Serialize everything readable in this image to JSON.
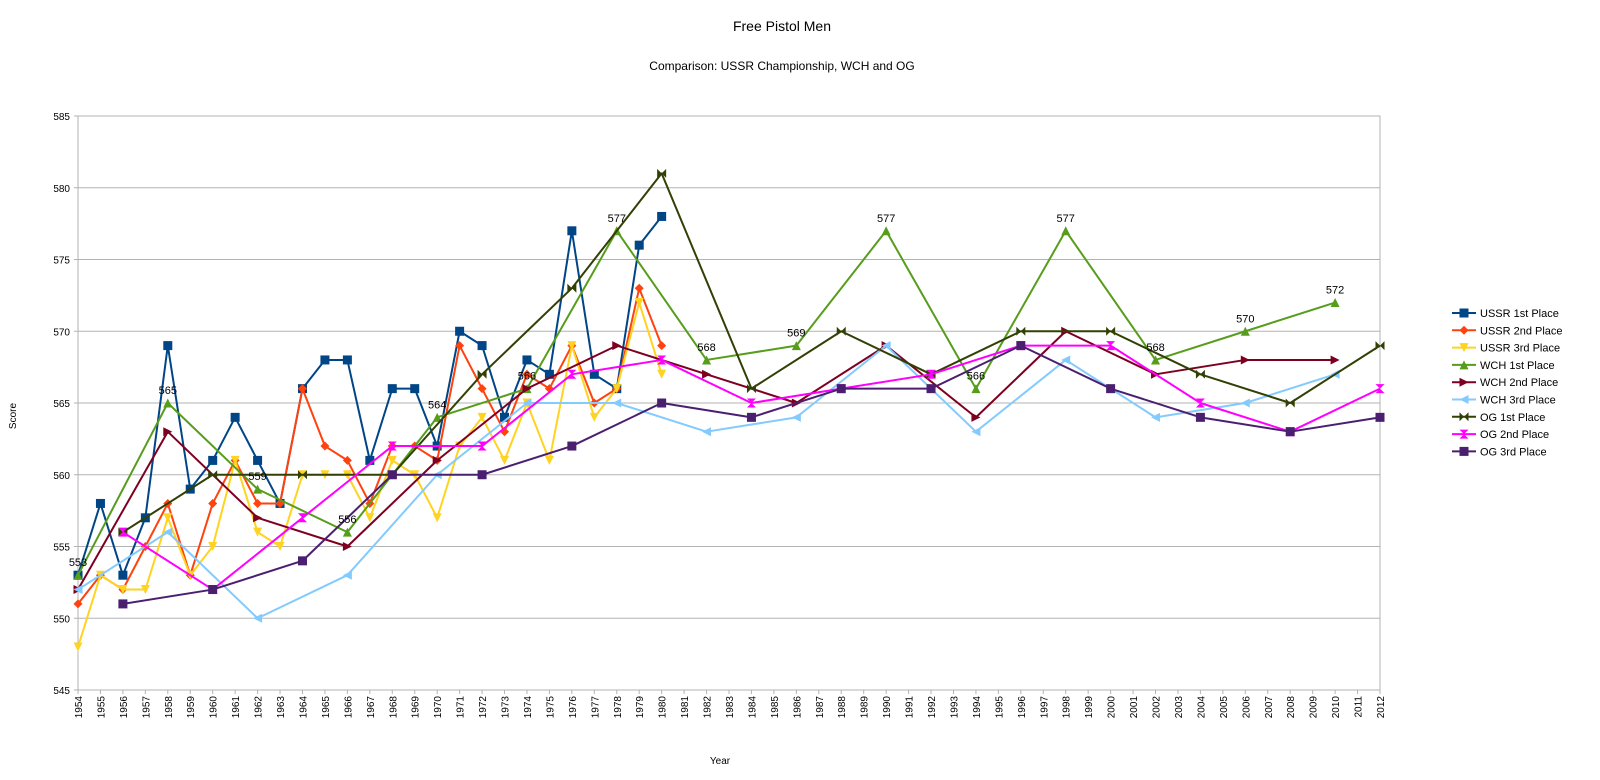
{
  "chart_data": {
    "type": "line",
    "title": "Free Pistol Men",
    "subtitle": "Comparison: USSR Championship, WCH and OG",
    "xlabel": "Year",
    "ylabel": "Score",
    "ylim": [
      545,
      585
    ],
    "yticks": [
      545,
      550,
      555,
      560,
      565,
      570,
      575,
      580,
      585
    ],
    "grid": "horizontal",
    "legend_position": "right",
    "x": [
      1954,
      1955,
      1956,
      1957,
      1958,
      1959,
      1960,
      1961,
      1962,
      1963,
      1964,
      1965,
      1966,
      1967,
      1968,
      1969,
      1970,
      1971,
      1972,
      1973,
      1974,
      1975,
      1976,
      1977,
      1978,
      1979,
      1980,
      1981,
      1982,
      1983,
      1984,
      1985,
      1986,
      1987,
      1988,
      1989,
      1990,
      1991,
      1992,
      1993,
      1994,
      1995,
      1996,
      1997,
      1998,
      1999,
      2000,
      2001,
      2002,
      2003,
      2004,
      2005,
      2006,
      2007,
      2008,
      2009,
      2010,
      2011,
      2012
    ],
    "series": [
      {
        "name": "USSR 1st Place",
        "color": "#004586",
        "marker": "square",
        "points": [
          [
            1954,
            553
          ],
          [
            1955,
            558
          ],
          [
            1956,
            553
          ],
          [
            1957,
            557
          ],
          [
            1958,
            569
          ],
          [
            1959,
            559
          ],
          [
            1960,
            561
          ],
          [
            1961,
            564
          ],
          [
            1962,
            561
          ],
          [
            1963,
            558
          ],
          [
            1964,
            566
          ],
          [
            1965,
            568
          ],
          [
            1966,
            568
          ],
          [
            1967,
            561
          ],
          [
            1968,
            566
          ],
          [
            1969,
            566
          ],
          [
            1970,
            562
          ],
          [
            1971,
            570
          ],
          [
            1972,
            569
          ],
          [
            1973,
            564
          ],
          [
            1974,
            568
          ],
          [
            1975,
            567
          ],
          [
            1976,
            577
          ],
          [
            1977,
            567
          ],
          [
            1978,
            566
          ],
          [
            1979,
            576
          ],
          [
            1980,
            578
          ]
        ]
      },
      {
        "name": "USSR 2nd Place",
        "color": "#ff420e",
        "marker": "diamond",
        "points": [
          [
            1954,
            551
          ],
          [
            1955,
            553
          ],
          [
            1956,
            552
          ],
          [
            1957,
            555
          ],
          [
            1958,
            558
          ],
          [
            1959,
            553
          ],
          [
            1960,
            558
          ],
          [
            1961,
            561
          ],
          [
            1962,
            558
          ],
          [
            1963,
            558
          ],
          [
            1964,
            566
          ],
          [
            1965,
            562
          ],
          [
            1966,
            561
          ],
          [
            1967,
            558
          ],
          [
            1968,
            562
          ],
          [
            1969,
            562
          ],
          [
            1970,
            561
          ],
          [
            1971,
            569
          ],
          [
            1972,
            566
          ],
          [
            1973,
            563
          ],
          [
            1974,
            567
          ],
          [
            1975,
            566
          ],
          [
            1976,
            569
          ],
          [
            1977,
            565
          ],
          [
            1978,
            566
          ],
          [
            1979,
            573
          ],
          [
            1980,
            569
          ]
        ]
      },
      {
        "name": "USSR 3rd Place",
        "color": "#ffd320",
        "marker": "triangle-down",
        "points": [
          [
            1954,
            548
          ],
          [
            1955,
            553
          ],
          [
            1956,
            552
          ],
          [
            1957,
            552
          ],
          [
            1958,
            557
          ],
          [
            1959,
            553
          ],
          [
            1960,
            555
          ],
          [
            1961,
            561
          ],
          [
            1962,
            556
          ],
          [
            1963,
            555
          ],
          [
            1964,
            560
          ],
          [
            1965,
            560
          ],
          [
            1966,
            560
          ],
          [
            1967,
            557
          ],
          [
            1968,
            561
          ],
          [
            1969,
            560
          ],
          [
            1970,
            557
          ],
          [
            1971,
            562
          ],
          [
            1972,
            564
          ],
          [
            1973,
            561
          ],
          [
            1974,
            565
          ],
          [
            1975,
            561
          ],
          [
            1976,
            569
          ],
          [
            1977,
            564
          ],
          [
            1978,
            566
          ],
          [
            1979,
            572
          ],
          [
            1980,
            567
          ]
        ]
      },
      {
        "name": "WCH 1st Place",
        "color": "#579d1c",
        "marker": "triangle-up",
        "points": [
          [
            1954,
            553
          ],
          [
            1958,
            565
          ],
          [
            1962,
            559
          ],
          [
            1966,
            556
          ],
          [
            1970,
            564
          ],
          [
            1974,
            566
          ],
          [
            1978,
            577
          ],
          [
            1982,
            568
          ],
          [
            1986,
            569
          ],
          [
            1990,
            577
          ],
          [
            1994,
            566
          ],
          [
            1998,
            577
          ],
          [
            2002,
            568
          ],
          [
            2006,
            570
          ],
          [
            2010,
            572
          ]
        ],
        "data_labels": [
          553,
          565,
          559,
          556,
          564,
          566,
          577,
          568,
          569,
          577,
          566,
          577,
          568,
          570,
          572
        ]
      },
      {
        "name": "WCH 2nd Place",
        "color": "#7e0021",
        "marker": "triangle-right",
        "points": [
          [
            1954,
            552
          ],
          [
            1958,
            563
          ],
          [
            1962,
            557
          ],
          [
            1966,
            555
          ],
          [
            1970,
            561
          ],
          [
            1974,
            566
          ],
          [
            1978,
            569
          ],
          [
            1982,
            567
          ],
          [
            1986,
            565
          ],
          [
            1990,
            569
          ],
          [
            1994,
            564
          ],
          [
            1998,
            570
          ],
          [
            2002,
            567
          ],
          [
            2006,
            568
          ],
          [
            2010,
            568
          ]
        ]
      },
      {
        "name": "WCH 3rd Place",
        "color": "#83caff",
        "marker": "triangle-left",
        "points": [
          [
            1954,
            552
          ],
          [
            1958,
            556
          ],
          [
            1962,
            550
          ],
          [
            1966,
            553
          ],
          [
            1970,
            560
          ],
          [
            1974,
            565
          ],
          [
            1978,
            565
          ],
          [
            1982,
            563
          ],
          [
            1986,
            564
          ],
          [
            1990,
            569
          ],
          [
            1994,
            563
          ],
          [
            1998,
            568
          ],
          [
            2002,
            564
          ],
          [
            2006,
            565
          ],
          [
            2010,
            567
          ]
        ]
      },
      {
        "name": "OG 1st Place",
        "color": "#314004",
        "marker": "bowtie",
        "points": [
          [
            1956,
            556
          ],
          [
            1960,
            560
          ],
          [
            1964,
            560
          ],
          [
            1968,
            560
          ],
          [
            1972,
            567
          ],
          [
            1976,
            573
          ],
          [
            1980,
            581
          ],
          [
            1984,
            566
          ],
          [
            1988,
            570
          ],
          [
            1992,
            567
          ],
          [
            1996,
            570
          ],
          [
            2000,
            570
          ],
          [
            2004,
            567
          ],
          [
            2008,
            565
          ],
          [
            2012,
            569
          ]
        ]
      },
      {
        "name": "OG 2nd Place",
        "color": "#ff00ff",
        "marker": "hourglass",
        "points": [
          [
            1956,
            556
          ],
          [
            1960,
            552
          ],
          [
            1964,
            557
          ],
          [
            1968,
            562
          ],
          [
            1972,
            562
          ],
          [
            1976,
            567
          ],
          [
            1980,
            568
          ],
          [
            1984,
            565
          ],
          [
            1988,
            566
          ],
          [
            1992,
            567
          ],
          [
            1996,
            569
          ],
          [
            2000,
            569
          ],
          [
            2004,
            565
          ],
          [
            2008,
            563
          ],
          [
            2012,
            566
          ]
        ]
      },
      {
        "name": "OG 3rd Place",
        "color": "#4b1f6f",
        "marker": "square",
        "points": [
          [
            1956,
            551
          ],
          [
            1960,
            552
          ],
          [
            1964,
            554
          ],
          [
            1968,
            560
          ],
          [
            1972,
            560
          ],
          [
            1976,
            562
          ],
          [
            1980,
            565
          ],
          [
            1984,
            564
          ],
          [
            1988,
            566
          ],
          [
            1992,
            566
          ],
          [
            1996,
            569
          ],
          [
            2000,
            566
          ],
          [
            2004,
            564
          ],
          [
            2008,
            563
          ],
          [
            2012,
            564
          ]
        ]
      }
    ]
  }
}
